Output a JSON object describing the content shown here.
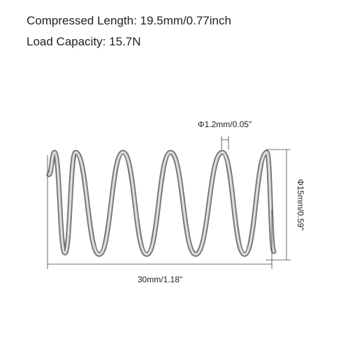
{
  "header": {
    "compressed_length": "Compressed Length: 19.5mm/0.77inch",
    "load_capacity": "Load Capacity: 15.7N"
  },
  "dimensions": {
    "wire_diameter": "Φ1.2mm/0.05\"",
    "outer_diameter": "Φ15mm/0.59\"",
    "length": "30mm/1.18\""
  }
}
